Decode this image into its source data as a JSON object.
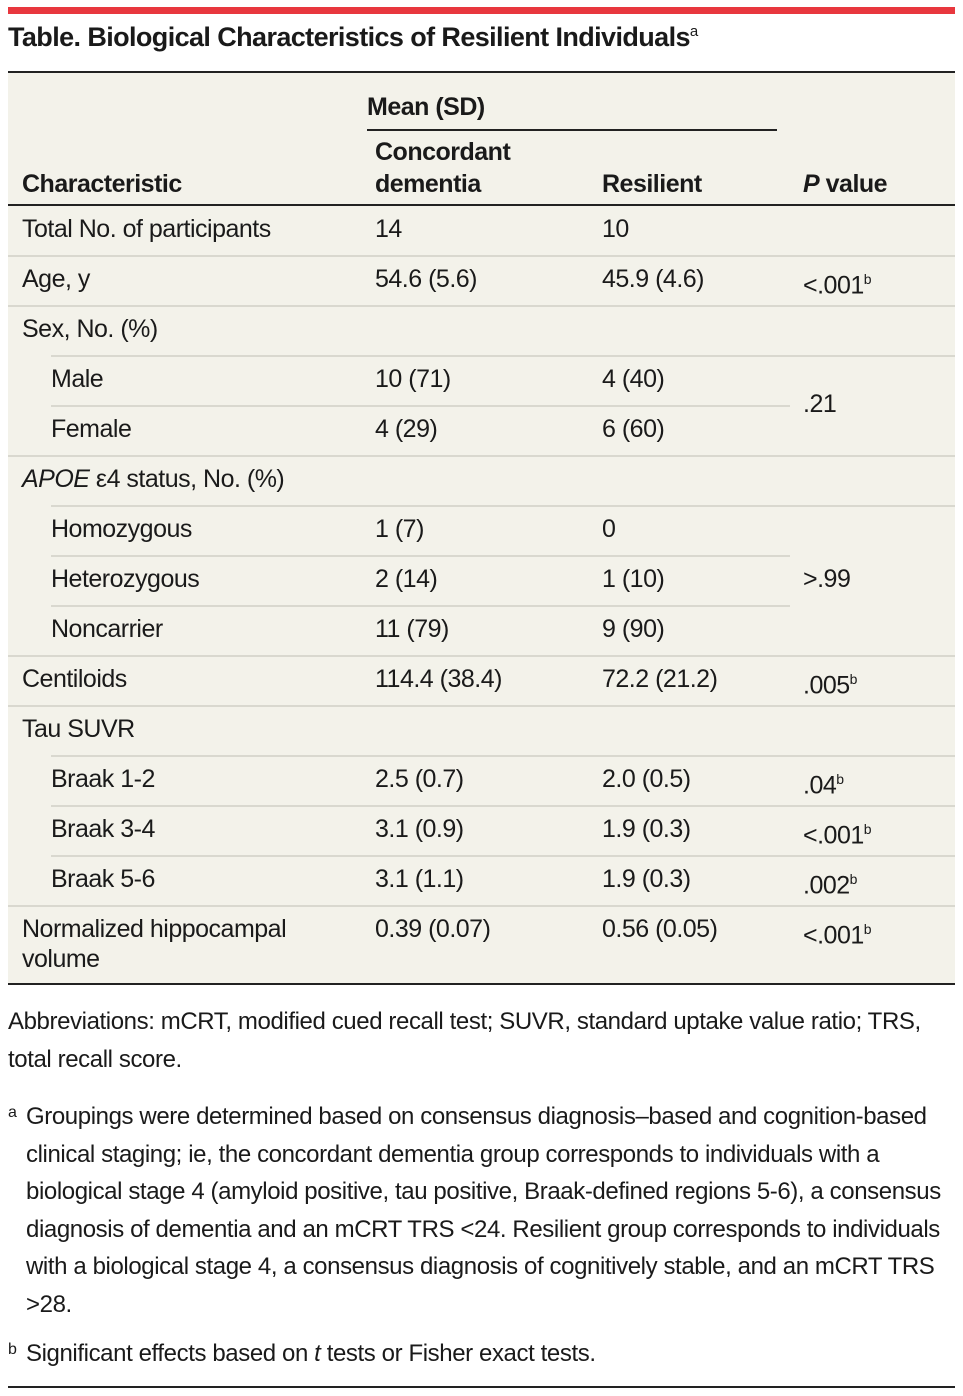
{
  "title": "Table. Biological Characteristics of Resilient Individuals",
  "title_sup": "a",
  "header": {
    "group": "Mean (SD)",
    "col1": "Characteristic",
    "col2_l1": "Concordant",
    "col2_l2": "dementia",
    "col3": "Resilient",
    "col4_italic": "P",
    "col4": " value"
  },
  "rows": [
    {
      "label": "Total No. of participants",
      "c": "14",
      "r": "10",
      "p": ""
    },
    {
      "label": "Age, y",
      "c": "54.6 (5.6)",
      "r": "45.9 (4.6)",
      "p": "<.001",
      "p_sup": "b"
    },
    {
      "label": "Sex, No. (%)"
    },
    {
      "label": "Male",
      "c": "10 (71)",
      "r": "4 (40)"
    },
    {
      "label": "Female",
      "c": "4 (29)",
      "r": "6 (60)"
    },
    {
      "label_italic": "APOE",
      "label": " ε4 status, No. (%)"
    },
    {
      "label": "Homozygous",
      "c": "1 (7)",
      "r": "0"
    },
    {
      "label": "Heterozygous",
      "c": "2 (14)",
      "r": "1 (10)"
    },
    {
      "label": "Noncarrier",
      "c": "11 (79)",
      "r": "9 (90)"
    },
    {
      "label": "Centiloids",
      "c": "114.4 (38.4)",
      "r": "72.2 (21.2)",
      "p": ".005",
      "p_sup": "b"
    },
    {
      "label": "Tau SUVR"
    },
    {
      "label": "Braak 1-2",
      "c": "2.5 (0.7)",
      "r": "2.0 (0.5)",
      "p": ".04",
      "p_sup": "b"
    },
    {
      "label": "Braak 3-4",
      "c": "3.1 (0.9)",
      "r": "1.9 (0.3)",
      "p": "<.001",
      "p_sup": "b"
    },
    {
      "label": "Braak 5-6",
      "c": "3.1 (1.1)",
      "r": "1.9 (0.3)",
      "p": ".002",
      "p_sup": "b"
    },
    {
      "label": "Normalized hippocampal",
      "label2": "volume",
      "c": "0.39 (0.07)",
      "r": "0.56 (0.05)",
      "p": "<.001",
      "p_sup": "b"
    }
  ],
  "sex_p": ".21",
  "apoe_p": ">.99",
  "abbreviations": "Abbreviations: mCRT, modified cued recall test; SUVR, standard uptake value ratio; TRS, total recall score.",
  "footnote_a_mark": "a",
  "footnote_a": "Groupings were determined based on consensus diagnosis–based and cognition-based clinical staging; ie, the concordant dementia group corresponds to individuals with a biological stage 4 (amyloid positive, tau positive, Braak-defined regions 5-6), a consensus diagnosis of dementia and an mCRT TRS <24. Resilient group corresponds to individuals with a biological stage 4, a consensus diagnosis of cognitively stable, and an mCRT TRS >28.",
  "footnote_b_mark": "b",
  "footnote_b_1": "Significant effects based on ",
  "footnote_b_italic": "t",
  "footnote_b_2": " tests or Fisher exact tests.",
  "colors": {
    "accent": "#e8373e",
    "table_bg": "#f3f2ea"
  }
}
